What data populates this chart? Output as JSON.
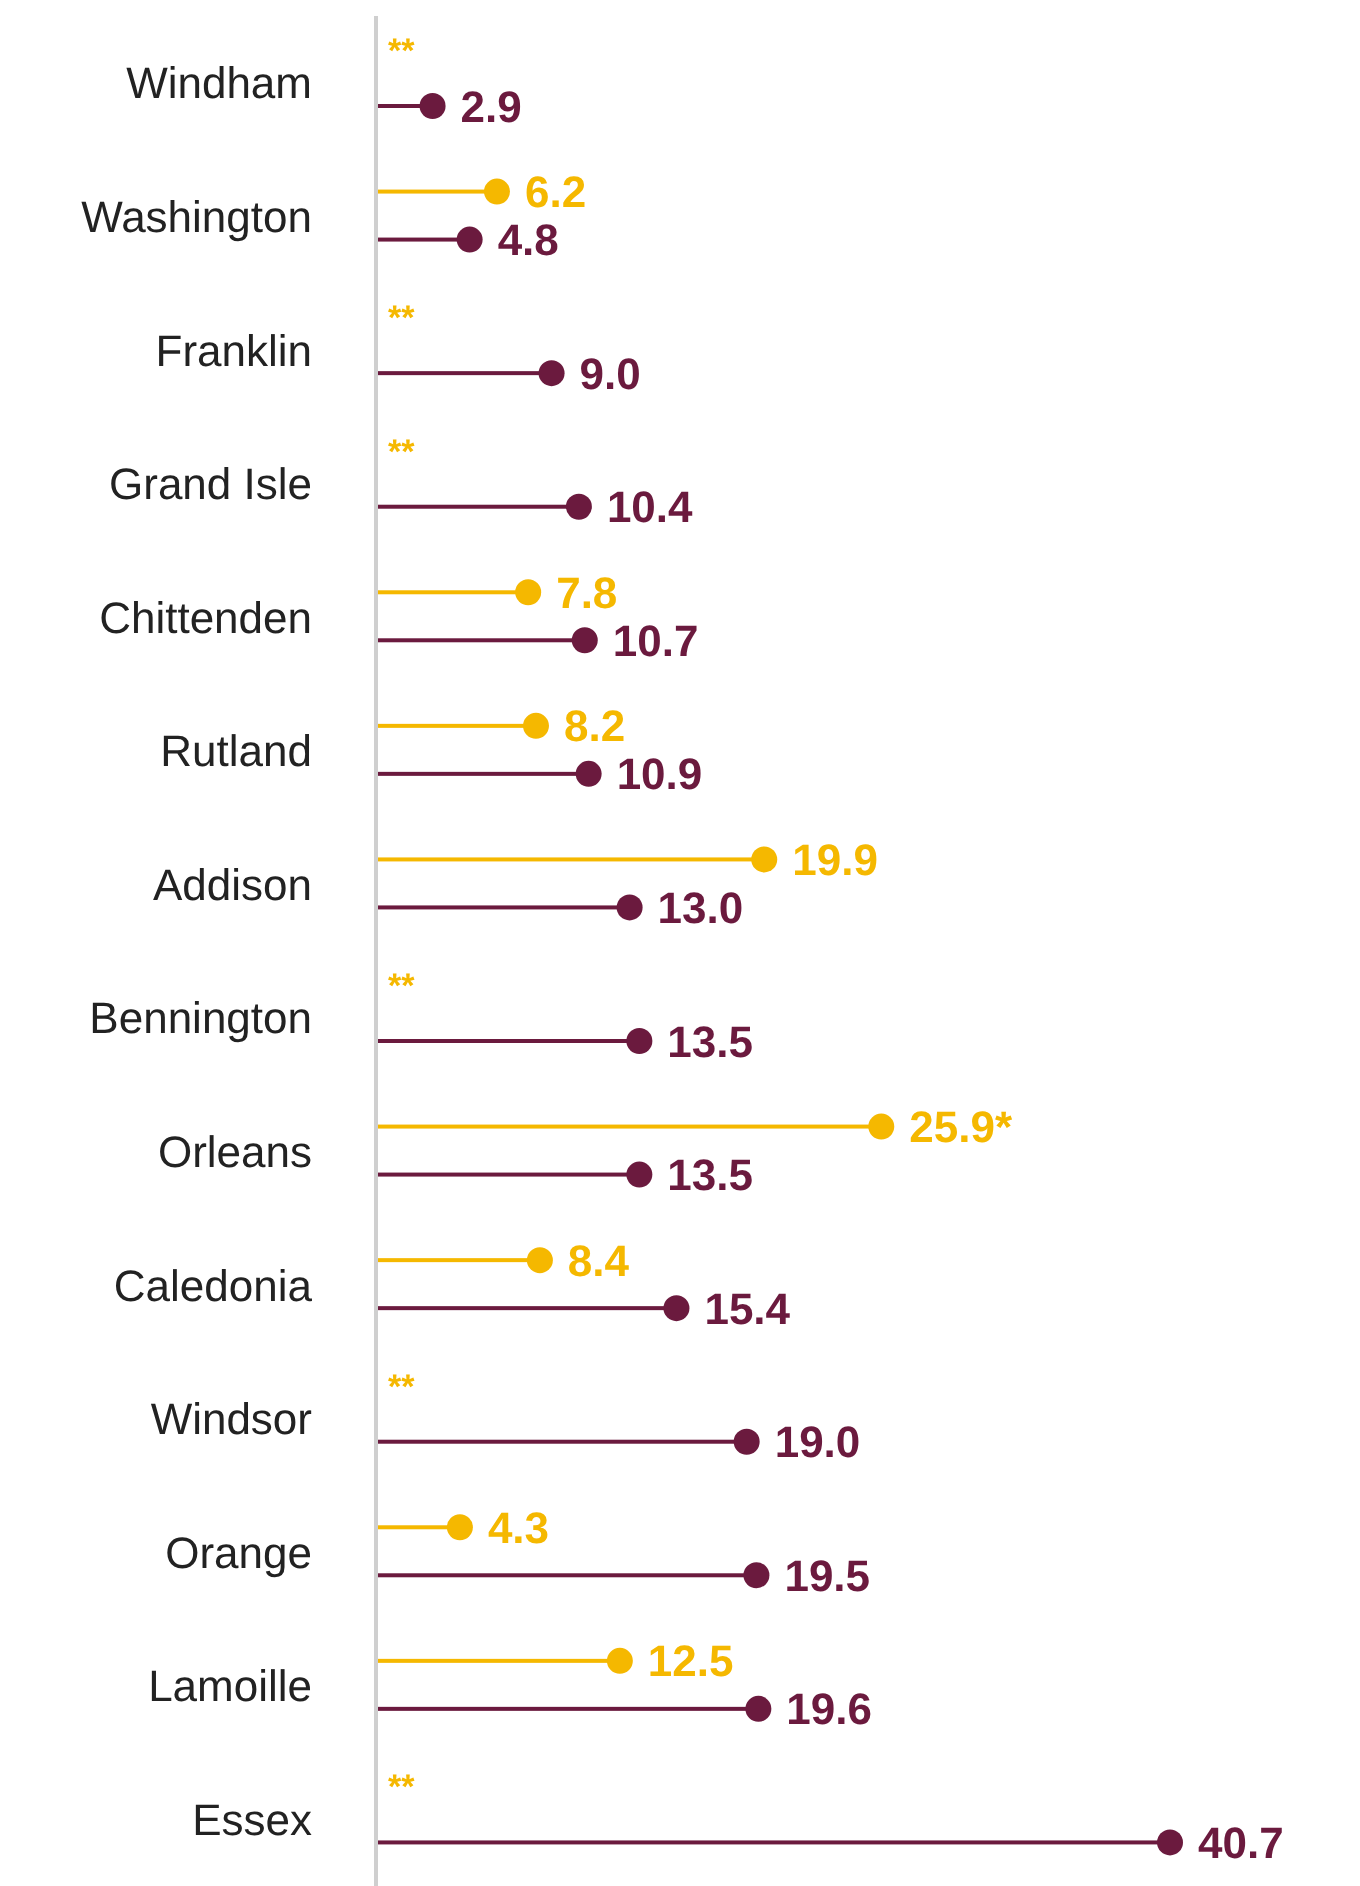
{
  "chart_data": {
    "type": "lollipop",
    "orientation": "horizontal",
    "categories": [
      "Windham",
      "Washington",
      "Franklin",
      "Grand Isle",
      "Chittenden",
      "Rutland",
      "Addison",
      "Bennington",
      "Orleans",
      "Caledonia",
      "Windsor",
      "Orange",
      "Lamoille",
      "Essex"
    ],
    "series": [
      {
        "color": "#f5b800",
        "values": [
          null,
          6.2,
          null,
          null,
          7.8,
          8.2,
          19.9,
          null,
          25.9,
          8.4,
          null,
          4.3,
          12.5,
          null
        ],
        "value_labels": [
          "**",
          "6.2",
          "**",
          "**",
          "7.8",
          "8.2",
          "19.9",
          "**",
          "25.9*",
          "8.4",
          "**",
          "4.3",
          "12.5",
          "**"
        ]
      },
      {
        "color": "#6b1a3e",
        "values": [
          2.9,
          4.8,
          9.0,
          10.4,
          10.7,
          10.9,
          13.0,
          13.5,
          13.5,
          15.4,
          19.0,
          19.5,
          19.6,
          40.7
        ],
        "value_labels": [
          "2.9",
          "4.8",
          "9.0",
          "10.4",
          "10.7",
          "10.9",
          "13.0",
          "13.5",
          "13.5",
          "15.4",
          "19.0",
          "19.5",
          "19.6",
          "40.7"
        ]
      }
    ]
  }
}
